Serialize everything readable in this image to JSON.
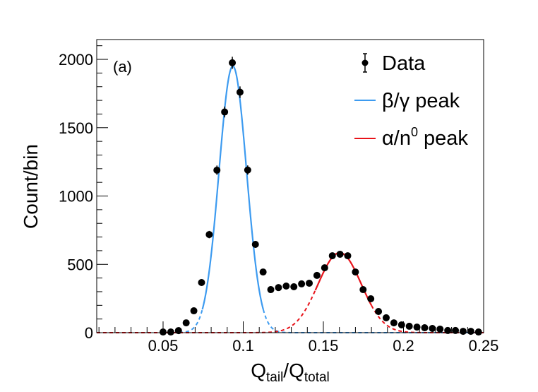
{
  "chart_data": {
    "type": "scatter",
    "title": "",
    "annotation": "(a)",
    "xlabel": {
      "main": "Q",
      "sub1": "tail",
      "sep": "/Q",
      "sub2": "total"
    },
    "ylabel": "Count/bin",
    "xlim": [
      0.0086,
      0.25
    ],
    "ylim": [
      0,
      2145
    ],
    "x_ticks": [
      0.05,
      0.1,
      0.15,
      0.2,
      0.25
    ],
    "x_tick_labels": [
      "0.05",
      "0.1",
      "0.15",
      "0.2",
      "0.25"
    ],
    "y_ticks": [
      0,
      500,
      1000,
      1500,
      2000
    ],
    "y_tick_labels": [
      "0",
      "500",
      "1000",
      "1500",
      "2000"
    ],
    "grid": false,
    "legend": {
      "placement": "top-right",
      "entries": [
        {
          "label": "Data",
          "kind": "marker"
        },
        {
          "label_main": "β/γ peak",
          "kind": "line",
          "color": "#3d9bf0"
        },
        {
          "label_main": "α/n",
          "label_sup": "0",
          "label_tail": " peak",
          "kind": "line",
          "color": "#e8131a"
        }
      ]
    },
    "series": [
      {
        "name": "Data",
        "kind": "points",
        "color": "#000000",
        "x": [
          0.05,
          0.0548,
          0.0596,
          0.0644,
          0.0692,
          0.074,
          0.0788,
          0.0836,
          0.0884,
          0.0932,
          0.098,
          0.1028,
          0.1076,
          0.1124,
          0.1172,
          0.122,
          0.1268,
          0.1316,
          0.1364,
          0.1412,
          0.146,
          0.1508,
          0.1556,
          0.1604,
          0.1652,
          0.17,
          0.1748,
          0.1796,
          0.1844,
          0.1892,
          0.194,
          0.1988,
          0.2036,
          0.2084,
          0.2132,
          0.218,
          0.2228,
          0.2276,
          0.2324,
          0.2372,
          0.242,
          0.2468
        ],
        "y": [
          5,
          5,
          15,
          72,
          160,
          367,
          718,
          1189,
          1615,
          1975,
          1760,
          1190,
          646,
          444,
          315,
          330,
          341,
          336,
          357,
          362,
          419,
          475,
          563,
          574,
          563,
          444,
          315,
          248,
          155,
          109,
          72,
          57,
          47,
          41,
          36,
          31,
          26,
          16,
          16,
          10,
          10,
          5
        ],
        "error": [
          2,
          2,
          4,
          8,
          13,
          19,
          27,
          34,
          40,
          44,
          42,
          34,
          25,
          21,
          18,
          18,
          18,
          18,
          19,
          19,
          20,
          22,
          24,
          24,
          24,
          21,
          18,
          16,
          12,
          10,
          8,
          8,
          7,
          6,
          6,
          6,
          5,
          4,
          4,
          3,
          3,
          2
        ]
      },
      {
        "name": "β/γ peak",
        "kind": "gaussian",
        "color": "#3d9bf0",
        "amplitude": 1950,
        "mean": 0.0935,
        "sigma": 0.0086,
        "solid_range": [
          0.0745,
          0.1125
        ]
      },
      {
        "name": "α/n0 peak",
        "kind": "gaussian",
        "color": "#e8131a",
        "amplitude": 585,
        "mean": 0.1602,
        "sigma": 0.0135,
        "solid_range": [
          0.145,
          0.18
        ]
      }
    ]
  }
}
